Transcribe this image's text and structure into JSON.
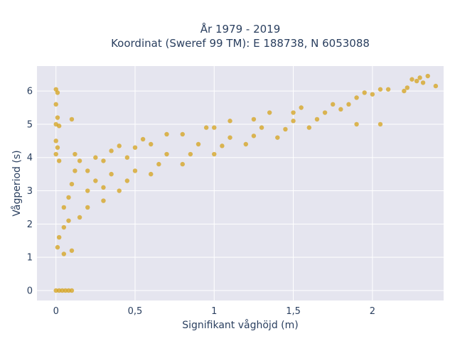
{
  "chart_data": {
    "type": "scatter",
    "title_line1": "År 1979 - 2019",
    "title_line2": "Koordinat (Sweref 99 TM): E 188738, N 6053088",
    "xlabel": "Signifikant våghöjd (m)",
    "ylabel": "Vågperiod (s)",
    "xlim": [
      -0.12,
      2.45
    ],
    "ylim": [
      -0.3,
      6.75
    ],
    "x_ticks": [
      {
        "value": 0,
        "label": "0"
      },
      {
        "value": 0.5,
        "label": "0,5"
      },
      {
        "value": 1,
        "label": "1"
      },
      {
        "value": 1.5,
        "label": "1,5"
      },
      {
        "value": 2,
        "label": "2"
      }
    ],
    "y_ticks": [
      {
        "value": 0,
        "label": "0"
      },
      {
        "value": 1,
        "label": "1"
      },
      {
        "value": 2,
        "label": "2"
      },
      {
        "value": 3,
        "label": "3"
      },
      {
        "value": 4,
        "label": "4"
      },
      {
        "value": 5,
        "label": "5"
      },
      {
        "value": 6,
        "label": "6"
      }
    ],
    "grid": true,
    "legend": "none",
    "marker_color": "#D4A21B",
    "plot_bg": "#E5E5EF",
    "series": [
      {
        "values": [
          [
            0,
            0
          ],
          [
            0.02,
            0
          ],
          [
            0.04,
            0
          ],
          [
            0.06,
            0
          ],
          [
            0.08,
            0
          ],
          [
            0.1,
            0
          ],
          [
            0,
            6.05
          ],
          [
            0.01,
            5.95
          ],
          [
            0,
            5.6
          ],
          [
            0.01,
            5.2
          ],
          [
            0.1,
            5.15
          ],
          [
            0,
            5.0
          ],
          [
            0.02,
            4.95
          ],
          [
            0,
            4.5
          ],
          [
            0.01,
            4.3
          ],
          [
            0,
            4.1
          ],
          [
            0.02,
            3.9
          ],
          [
            0.01,
            1.3
          ],
          [
            0.02,
            1.6
          ],
          [
            0.05,
            1.9
          ],
          [
            0.08,
            2.1
          ],
          [
            0.05,
            1.1
          ],
          [
            0.1,
            1.2
          ],
          [
            0.05,
            2.5
          ],
          [
            0.08,
            2.8
          ],
          [
            0.1,
            3.2
          ],
          [
            0.12,
            3.6
          ],
          [
            0.15,
            3.9
          ],
          [
            0.12,
            4.1
          ],
          [
            0.15,
            2.2
          ],
          [
            0.2,
            2.5
          ],
          [
            0.2,
            3.0
          ],
          [
            0.25,
            3.3
          ],
          [
            0.2,
            3.6
          ],
          [
            0.25,
            4.0
          ],
          [
            0.3,
            2.7
          ],
          [
            0.3,
            3.1
          ],
          [
            0.35,
            3.5
          ],
          [
            0.3,
            3.9
          ],
          [
            0.35,
            4.2
          ],
          [
            0.4,
            4.35
          ],
          [
            0.4,
            3.0
          ],
          [
            0.45,
            3.3
          ],
          [
            0.5,
            3.6
          ],
          [
            0.45,
            4.0
          ],
          [
            0.5,
            4.3
          ],
          [
            0.55,
            4.55
          ],
          [
            0.6,
            3.5
          ],
          [
            0.65,
            3.8
          ],
          [
            0.7,
            4.1
          ],
          [
            0.6,
            4.4
          ],
          [
            0.7,
            4.7
          ],
          [
            0.8,
            3.8
          ],
          [
            0.85,
            4.1
          ],
          [
            0.9,
            4.4
          ],
          [
            0.8,
            4.7
          ],
          [
            0.95,
            4.9
          ],
          [
            1.0,
            4.1
          ],
          [
            1.05,
            4.35
          ],
          [
            1.1,
            4.6
          ],
          [
            1.0,
            4.9
          ],
          [
            1.1,
            5.1
          ],
          [
            1.2,
            4.4
          ],
          [
            1.25,
            4.65
          ],
          [
            1.3,
            4.9
          ],
          [
            1.25,
            5.15
          ],
          [
            1.35,
            5.35
          ],
          [
            1.4,
            4.6
          ],
          [
            1.45,
            4.85
          ],
          [
            1.5,
            5.1
          ],
          [
            1.5,
            5.35
          ],
          [
            1.55,
            5.5
          ],
          [
            1.6,
            4.9
          ],
          [
            1.65,
            5.15
          ],
          [
            1.7,
            5.35
          ],
          [
            1.75,
            5.6
          ],
          [
            1.8,
            5.45
          ],
          [
            1.85,
            5.6
          ],
          [
            1.9,
            5.8
          ],
          [
            1.95,
            5.95
          ],
          [
            2.0,
            5.9
          ],
          [
            2.05,
            6.05
          ],
          [
            1.9,
            5.0
          ],
          [
            2.05,
            5.0
          ],
          [
            2.1,
            6.05
          ],
          [
            2.2,
            6.0
          ],
          [
            2.25,
            6.35
          ],
          [
            2.28,
            6.3
          ],
          [
            2.3,
            6.4
          ],
          [
            2.35,
            6.45
          ],
          [
            2.32,
            6.25
          ],
          [
            2.4,
            6.15
          ],
          [
            2.22,
            6.1
          ]
        ]
      }
    ]
  }
}
